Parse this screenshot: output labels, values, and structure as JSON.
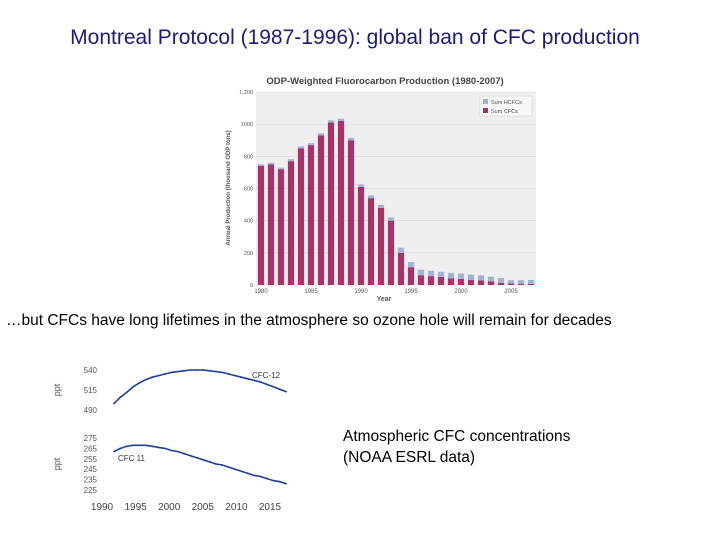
{
  "slide": {
    "title": "Montreal Protocol (1987-1996): global ban of CFC production",
    "subtitle": "…but CFCs have long lifetimes in the atmosphere so ozone hole will remain for decades",
    "caption_line1": "Atmospheric CFC concentrations",
    "caption_line2": "(NOAA ESRL data)"
  },
  "colors": {
    "title": "#1a1a80",
    "cfc_bar": "#a8326a",
    "hcfc_bar": "#9fb4d6",
    "line": "#1f3fa0",
    "plot_bg": "#efefef"
  },
  "chart_data": [
    {
      "type": "bar",
      "title": "ODP-Weighted Fluorocarbon Production (1980-2007)",
      "xlabel": "Year",
      "ylabel": "Annual Production (thousand ODP tons)",
      "ylim": [
        0,
        1200
      ],
      "yticks": [
        "0",
        "200",
        "400",
        "600",
        "800",
        "1000",
        "1,200"
      ],
      "xticks": [
        "1980",
        "1985",
        "1990",
        "1995",
        "2000",
        "2005"
      ],
      "legend": [
        "Sum HCFCs",
        "Sum CFCs"
      ],
      "legend_position": "top-right",
      "categories": [
        "1980",
        "1981",
        "1982",
        "1983",
        "1984",
        "1985",
        "1986",
        "1987",
        "1988",
        "1989",
        "1990",
        "1991",
        "1992",
        "1993",
        "1994",
        "1995",
        "1996",
        "1997",
        "1998",
        "1999",
        "2000",
        "2001",
        "2002",
        "2003",
        "2004",
        "2005",
        "2006",
        "2007"
      ],
      "series": [
        {
          "name": "Sum CFCs",
          "values": [
            740,
            750,
            720,
            770,
            850,
            870,
            930,
            1010,
            1020,
            900,
            610,
            540,
            480,
            400,
            200,
            110,
            60,
            55,
            50,
            42,
            38,
            32,
            28,
            22,
            14,
            10,
            8,
            6
          ]
        },
        {
          "name": "Sum HCFCs",
          "values": [
            10,
            10,
            10,
            12,
            12,
            12,
            13,
            14,
            14,
            15,
            16,
            17,
            18,
            20,
            32,
            33,
            35,
            33,
            32,
            33,
            33,
            33,
            32,
            30,
            30,
            20,
            22,
            25
          ]
        }
      ]
    },
    {
      "type": "line",
      "name": "CFC-12",
      "ylabel": "ppt",
      "yticks": [
        "540",
        "515",
        "490"
      ],
      "ylim": [
        490,
        545
      ],
      "x": [
        1990,
        1991,
        1992,
        1993,
        1994,
        1995,
        1996,
        1997,
        1998,
        1999,
        2000,
        2001,
        2002,
        2003,
        2004,
        2005,
        2006,
        2007,
        2008,
        2009,
        2010,
        2011,
        2012,
        2013,
        2014,
        2015,
        2016,
        2017
      ],
      "values": [
        498,
        506,
        512,
        519,
        524,
        528,
        531,
        533,
        535,
        537,
        538,
        539,
        540,
        540,
        540,
        539,
        538,
        537,
        535,
        533,
        531,
        529,
        527,
        525,
        522,
        519,
        516,
        513
      ]
    },
    {
      "type": "line",
      "name": "CFC 11",
      "ylabel": "ppt",
      "yticks": [
        "275",
        "265",
        "255",
        "245",
        "235",
        "225"
      ],
      "ylim": [
        225,
        275
      ],
      "xticks": [
        "1990",
        "1995",
        "2000",
        "2005",
        "2010",
        "2015"
      ],
      "x": [
        1990,
        1991,
        1992,
        1993,
        1994,
        1995,
        1996,
        1997,
        1998,
        1999,
        2000,
        2001,
        2002,
        2003,
        2004,
        2005,
        2006,
        2007,
        2008,
        2009,
        2010,
        2011,
        2012,
        2013,
        2014,
        2015,
        2016,
        2017
      ],
      "values": [
        262,
        265,
        267,
        268,
        268,
        268,
        267,
        266,
        265,
        263,
        262,
        260,
        258,
        256,
        254,
        252,
        250,
        249,
        247,
        245,
        243,
        241,
        239,
        238,
        236,
        234,
        233,
        231
      ]
    }
  ]
}
